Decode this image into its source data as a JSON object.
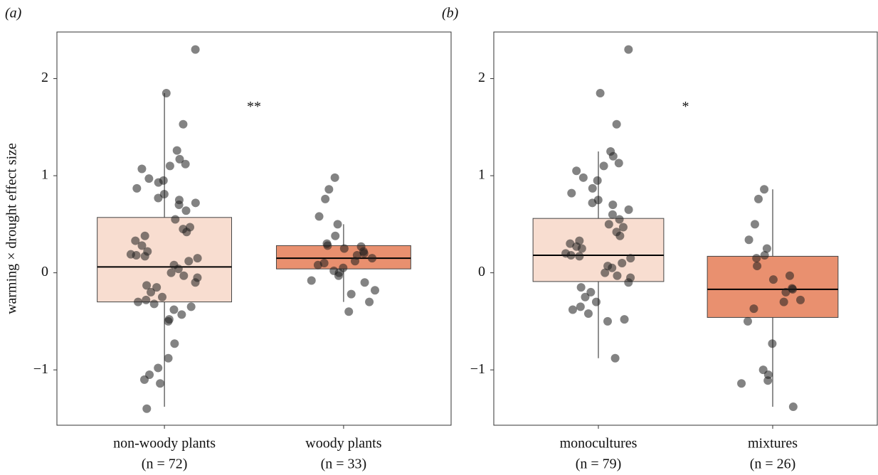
{
  "chart_data": [
    {
      "type": "box",
      "panel_label": "(a)",
      "ylabel": "warming × drought effect size",
      "annotation": "**",
      "ylim": [
        -1.57,
        2.48
      ],
      "yticks": [
        {
          "value": -1,
          "label": "−1"
        },
        0,
        1,
        2
      ],
      "categories": [
        "non-woody plants",
        "woody plants"
      ],
      "n_labels": [
        "(n = 72)",
        "(n = 33)"
      ],
      "boxes": [
        {
          "color": "#f8ddd0",
          "whislo": -1.38,
          "q1": -0.3,
          "median": 0.06,
          "q3": 0.57,
          "whishi": 1.85,
          "points": [
            2.3,
            1.85,
            1.53,
            1.26,
            1.17,
            1.12,
            1.1,
            1.07,
            0.97,
            0.95,
            0.93,
            0.87,
            0.81,
            0.77,
            0.75,
            0.72,
            0.7,
            0.64,
            0.55,
            0.47,
            0.45,
            0.42,
            0.38,
            0.33,
            0.28,
            0.22,
            0.19,
            0.18,
            0.17,
            0.15,
            0.12,
            0.08,
            0.04,
            0.0,
            -0.03,
            -0.05,
            -0.1,
            -0.13,
            -0.15,
            -0.2,
            -0.25,
            -0.28,
            -0.3,
            -0.32,
            -0.35,
            -0.38,
            -0.43,
            -0.48,
            -0.5,
            -0.73,
            -0.88,
            -0.98,
            -1.05,
            -1.1,
            -1.14,
            -1.4
          ]
        },
        {
          "color": "#e9906f",
          "whislo": -0.3,
          "q1": 0.04,
          "median": 0.15,
          "q3": 0.28,
          "whishi": 0.5,
          "points": [
            0.98,
            0.86,
            0.76,
            0.58,
            0.5,
            0.38,
            0.3,
            0.28,
            0.27,
            0.25,
            0.22,
            0.2,
            0.18,
            0.15,
            0.12,
            0.1,
            0.08,
            0.05,
            0.02,
            0.0,
            -0.03,
            -0.08,
            -0.1,
            -0.18,
            -0.22,
            -0.3,
            -0.4
          ]
        }
      ]
    },
    {
      "type": "box",
      "panel_label": "(b)",
      "annotation": "*",
      "ylim": [
        -1.57,
        2.48
      ],
      "yticks": [
        {
          "value": -1,
          "label": "−1"
        },
        0,
        1,
        2
      ],
      "categories": [
        "monocultures",
        "mixtures"
      ],
      "n_labels": [
        "(n = 79)",
        "(n = 26)"
      ],
      "boxes": [
        {
          "color": "#f8ddd0",
          "whislo": -0.88,
          "q1": -0.09,
          "median": 0.18,
          "q3": 0.56,
          "whishi": 1.25,
          "points": [
            2.3,
            1.85,
            1.53,
            1.25,
            1.2,
            1.13,
            1.1,
            1.05,
            0.98,
            0.95,
            0.87,
            0.82,
            0.75,
            0.72,
            0.7,
            0.65,
            0.6,
            0.55,
            0.5,
            0.47,
            0.42,
            0.38,
            0.33,
            0.3,
            0.27,
            0.25,
            0.2,
            0.18,
            0.17,
            0.15,
            0.1,
            0.07,
            0.05,
            0.0,
            -0.03,
            -0.05,
            -0.1,
            -0.15,
            -0.2,
            -0.25,
            -0.3,
            -0.35,
            -0.38,
            -0.42,
            -0.48,
            -0.5,
            -0.88
          ]
        },
        {
          "color": "#e9906f",
          "whislo": -1.38,
          "q1": -0.46,
          "median": -0.17,
          "q3": 0.17,
          "whishi": 0.86,
          "points": [
            0.86,
            0.76,
            0.5,
            0.34,
            0.25,
            0.18,
            0.15,
            0.07,
            -0.03,
            -0.07,
            -0.16,
            -0.17,
            -0.2,
            -0.28,
            -0.3,
            -0.37,
            -0.5,
            -0.73,
            -1.0,
            -1.05,
            -1.11,
            -1.14,
            -1.38
          ]
        }
      ]
    }
  ]
}
